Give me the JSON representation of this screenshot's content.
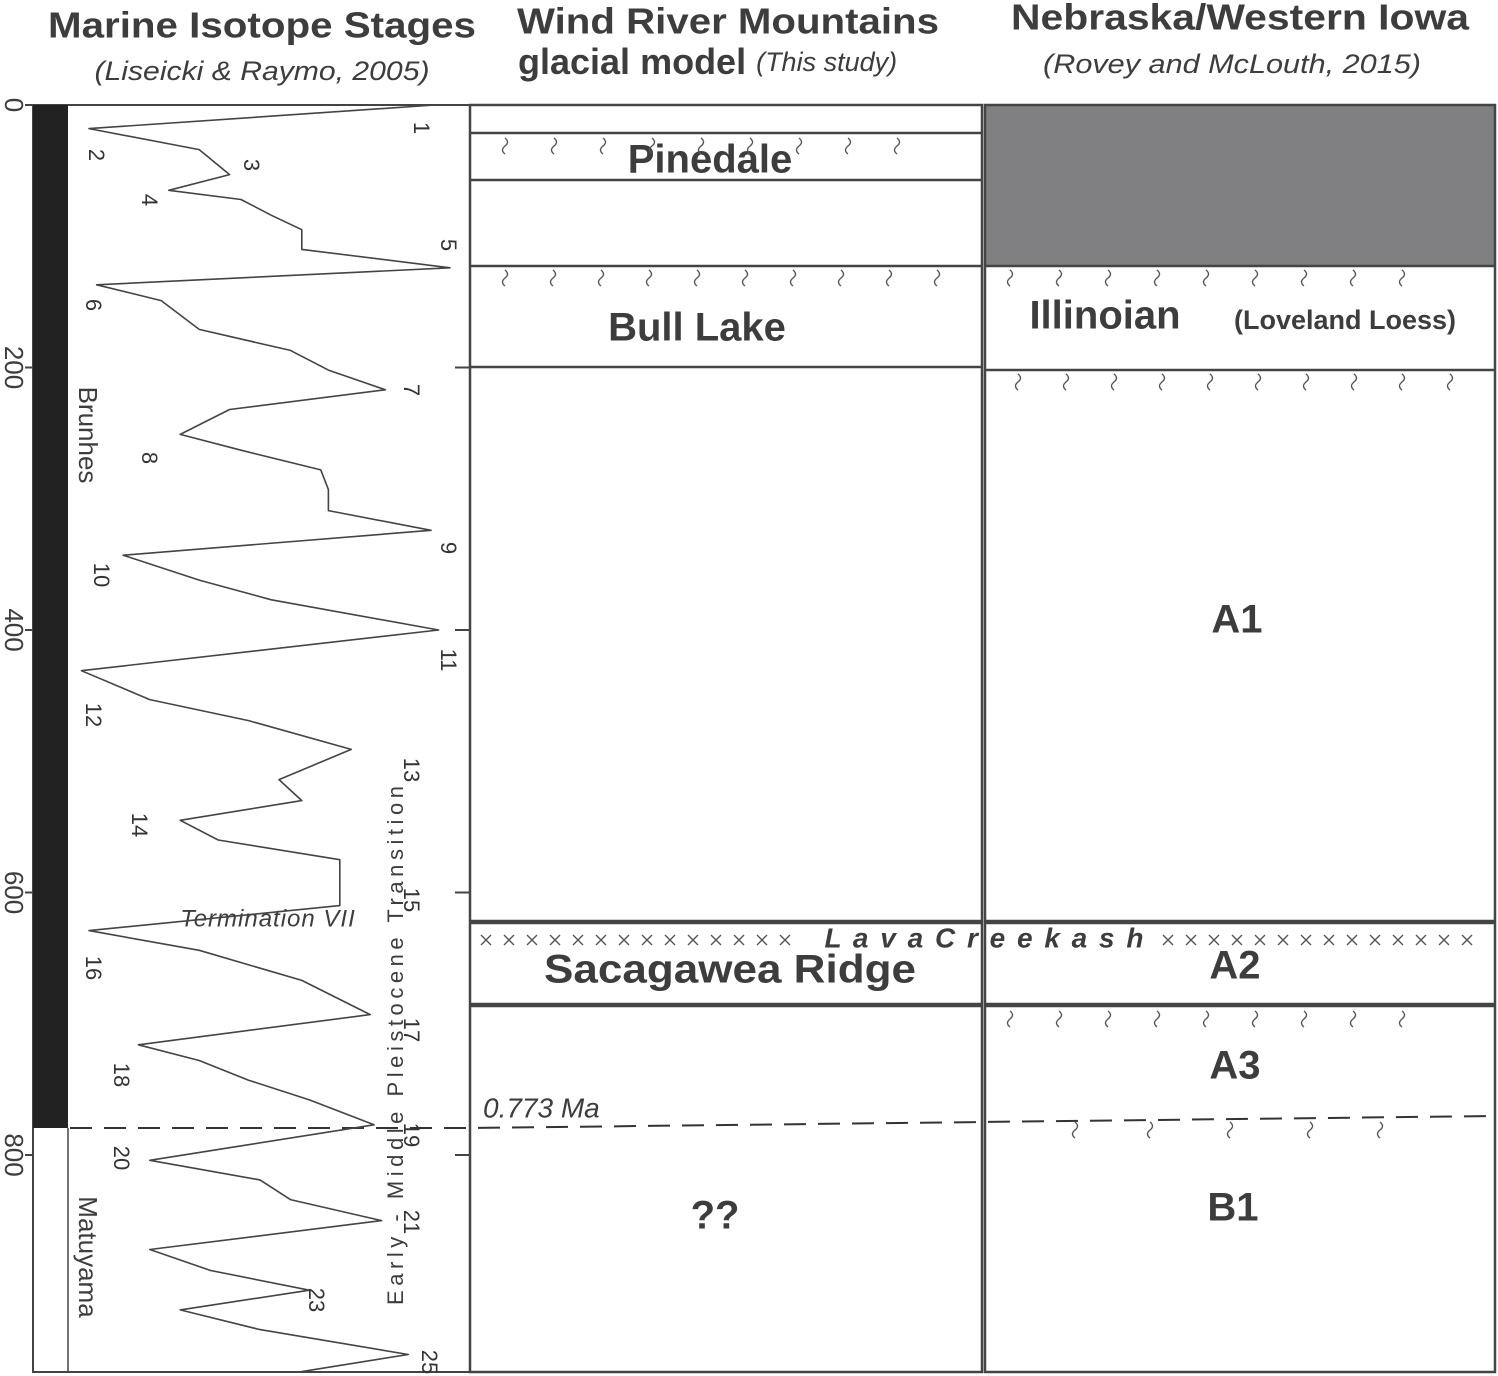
{
  "headers": {
    "mis": {
      "title": "Marine Isotope Stages",
      "citation": "(Liseicki & Raymo, 2005)"
    },
    "wind_river": {
      "title_line1": "Wind River Mountains",
      "title_line2": "glacial model",
      "citation": "(This  study)"
    },
    "nebraska": {
      "title": "Nebraska/Western Iowa",
      "citation": "(Rovey and McLouth, 2015)"
    }
  },
  "chart_data": {
    "type": "line",
    "x": [
      0,
      18,
      34,
      53,
      65,
      72,
      84,
      95,
      110,
      124,
      137,
      149,
      171,
      187,
      202,
      217,
      232,
      251,
      263,
      278,
      293,
      309,
      324,
      343,
      362,
      377,
      400,
      431,
      453,
      469,
      491,
      514,
      530,
      545,
      560,
      575,
      590,
      610,
      629,
      644,
      667,
      693,
      716,
      728,
      743,
      758,
      777,
      804,
      819,
      834,
      850,
      872,
      888,
      903,
      918,
      933,
      952,
      965
    ],
    "values": [
      96,
      5,
      34,
      42,
      26,
      45,
      53,
      61,
      61,
      100,
      7,
      24,
      34,
      58,
      68,
      83,
      42,
      29,
      45,
      66,
      68,
      68,
      95,
      14,
      34,
      53,
      97,
      3,
      21,
      47,
      74,
      55,
      61,
      29,
      39,
      71,
      71,
      71,
      5,
      34,
      61,
      79,
      18,
      34,
      47,
      63,
      80,
      21,
      50,
      58,
      82,
      21,
      37,
      63,
      29,
      50,
      89,
      61
    ],
    "xlim": [
      0,
      965
    ],
    "xticks": [
      0,
      200,
      400,
      600,
      800
    ],
    "ylim": [
      0,
      100
    ],
    "color": "#444444"
  },
  "stage_labels": [
    "1",
    "2",
    "3",
    "4",
    "5",
    "6",
    "7",
    "8",
    "9",
    "10",
    "11",
    "12",
    "13",
    "14",
    "15",
    "16",
    "17",
    "18",
    "19",
    "20",
    "21",
    "23",
    "25"
  ],
  "magnetic_chrons": [
    "Brunhes",
    "Matuyama"
  ],
  "annotations": {
    "termination": "Termination VII",
    "transition": "Early - Middle Pleistocene Transition",
    "boundary": "0.773 Ma"
  },
  "wind_river_units": [
    "Pinedale",
    "Bull Lake",
    "Sacagawea Ridge",
    "??"
  ],
  "lava_creek": "L a v a  C r e e k  a s h",
  "nebraska_units": {
    "illinoian": "Illinoian",
    "loveland": "(Loveland Loess)",
    "a1": "A1",
    "a2": "A2",
    "a3": "A3",
    "b1": "B1"
  }
}
